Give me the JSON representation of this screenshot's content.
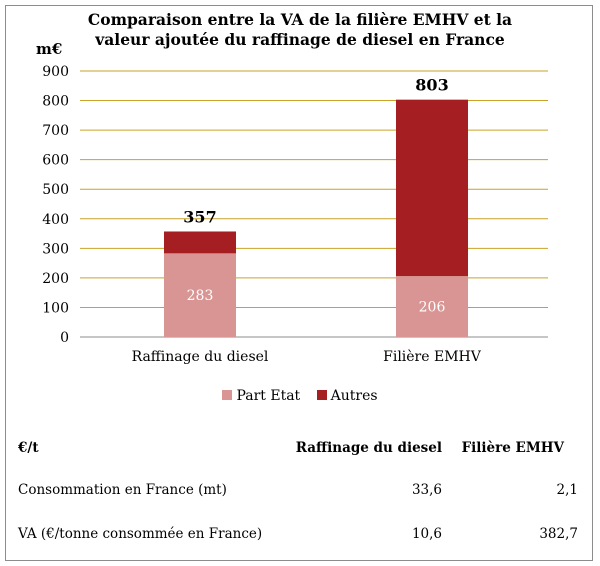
{
  "chart_data": {
    "type": "bar",
    "stacked": true,
    "title": "Comparaison entre la VA de la filière EMHV et la valeur ajoutée du raffinage de diesel en France",
    "title_lines": [
      "Comparaison entre la VA de la filière EMHV et la",
      "valeur ajoutée du raffinage de diesel en France"
    ],
    "ylabel": "m€",
    "ylim": [
      0,
      900
    ],
    "yticks": [
      0,
      100,
      200,
      300,
      400,
      500,
      600,
      700,
      800,
      900
    ],
    "grid": true,
    "categories": [
      "Raffinage du diesel",
      "Filière EMHV"
    ],
    "series": [
      {
        "name": "Part Etat",
        "values": [
          283,
          206
        ],
        "color": "#d99593",
        "labels": [
          "283",
          "206"
        ]
      },
      {
        "name": "Autres",
        "values": [
          74,
          597
        ],
        "color": "#a41e22"
      }
    ],
    "totals": [
      357,
      803
    ],
    "total_labels": [
      "357",
      "803"
    ],
    "legend_position": "bottom"
  },
  "colors": {
    "grid": "#c9a227",
    "axis": "#8c8c8c"
  },
  "table": {
    "unit_label": "€/t",
    "columns": [
      "Raffinage du diesel",
      "Filière EMHV"
    ],
    "rows": [
      {
        "label": "Consommation en France (mt)",
        "values": [
          "33,6",
          "2,1"
        ]
      },
      {
        "label": "VA (€/tonne consommée en France)",
        "values": [
          "10,6",
          "382,7"
        ]
      }
    ]
  }
}
